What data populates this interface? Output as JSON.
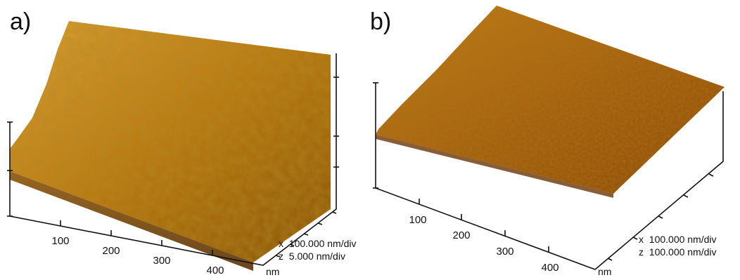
{
  "panels": [
    {
      "label": "a)",
      "ticks": [
        "100",
        "200",
        "300",
        "400"
      ],
      "unit": "nm",
      "scale_x": "x  100.000 nm/div",
      "scale_z": "z  5.000 nm/div",
      "surface": "coarse grain topography",
      "colors": {
        "light": "#f0b63a",
        "mid": "#b8760f",
        "dark": "#5b3203"
      }
    },
    {
      "label": "b)",
      "ticks": [
        "100",
        "200",
        "300",
        "400"
      ],
      "unit": "nm",
      "scale_x": "x  100.000 nm/div",
      "scale_z": "z  100.000 nm/div",
      "surface": "fine grain topography",
      "colors": {
        "light": "#e3a02c",
        "mid": "#a85d0c",
        "dark": "#4a2202"
      }
    }
  ]
}
